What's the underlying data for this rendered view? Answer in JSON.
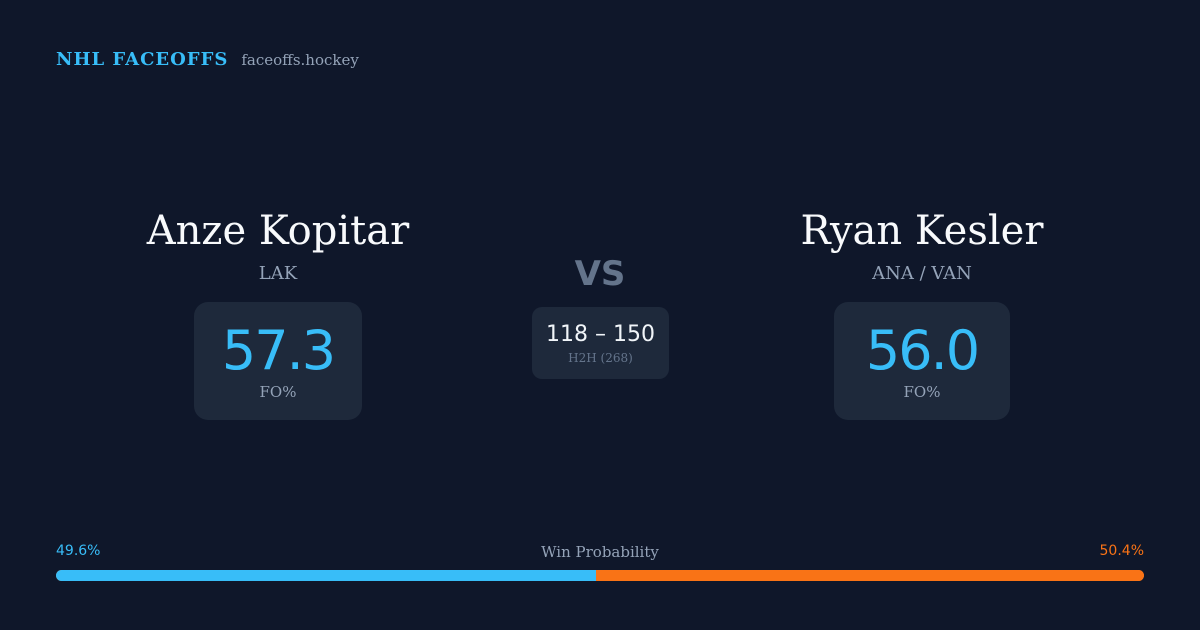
{
  "brand": {
    "title": "NHL FACEOFFS",
    "url": "faceoffs.hockey",
    "accent_color": "#38bdf8"
  },
  "player_left": {
    "name": "Anze Kopitar",
    "team": "LAK",
    "stat_value": "57.3",
    "stat_label": "FO%"
  },
  "player_right": {
    "name": "Ryan Kesler",
    "team": "ANA / VAN",
    "stat_value": "56.0",
    "stat_label": "FO%"
  },
  "matchup": {
    "vs_label": "VS",
    "h2h_score": "118 – 150",
    "h2h_label": "H2H (268)"
  },
  "win_probability": {
    "title": "Win Probability",
    "left_label": "49.6%",
    "right_label": "50.4%",
    "left_value": 49.6,
    "right_value": 50.4,
    "left_color": "#38bdf8",
    "right_color": "#f97316"
  }
}
